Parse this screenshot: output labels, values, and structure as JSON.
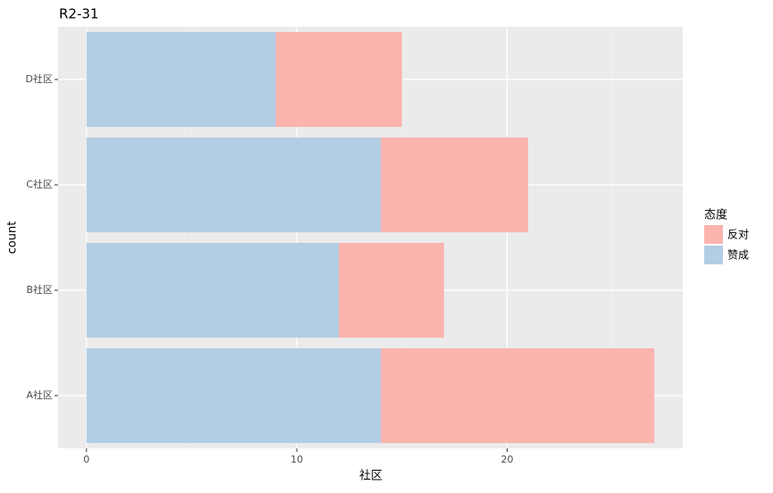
{
  "chart_data": {
    "type": "stacked_barh",
    "title": "R2-31",
    "x_label": "社区",
    "y_label": "count",
    "categories": [
      "A社区",
      "B社区",
      "C社区",
      "D社区"
    ],
    "series": [
      {
        "name": "反对",
        "color": "#fbb4ae",
        "values": [
          13,
          5,
          7,
          6
        ]
      },
      {
        "name": "赞成",
        "color": "#b3cde3",
        "values": [
          14,
          12,
          14,
          9
        ]
      }
    ],
    "legend_title": "态度",
    "legend": "right",
    "xlim": [
      -1.35,
      28.35
    ],
    "xticks": [
      0,
      10,
      20
    ],
    "x_minor_ticks": [
      5,
      15,
      25
    ],
    "grid": true
  }
}
